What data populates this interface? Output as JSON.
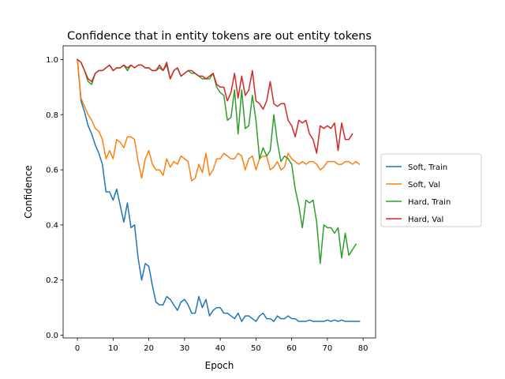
{
  "chart_data": {
    "type": "line",
    "title": "Confidence that in entity tokens are out entity tokens",
    "xlabel": "Epoch",
    "ylabel": "Confidence",
    "xlim": [
      -4,
      83.5
    ],
    "ylim": [
      -0.01,
      1.05
    ],
    "xticks": [
      0,
      10,
      20,
      30,
      40,
      50,
      60,
      70,
      80
    ],
    "yticks": [
      0.0,
      0.2,
      0.4,
      0.6,
      0.8,
      1.0
    ],
    "ytick_labels": [
      "0.0",
      "0.2",
      "0.4",
      "0.6",
      "0.8",
      "1.0"
    ],
    "grid": false,
    "legend_position": "outside-right",
    "series": [
      {
        "name": "Soft, Train",
        "color": "#1f77b4",
        "values": [
          1.0,
          0.85,
          0.81,
          0.76,
          0.73,
          0.69,
          0.66,
          0.62,
          0.52,
          0.52,
          0.49,
          0.53,
          0.47,
          0.41,
          0.48,
          0.39,
          0.4,
          0.28,
          0.2,
          0.26,
          0.25,
          0.18,
          0.12,
          0.11,
          0.11,
          0.14,
          0.13,
          0.11,
          0.09,
          0.12,
          0.13,
          0.11,
          0.08,
          0.08,
          0.14,
          0.1,
          0.13,
          0.07,
          0.09,
          0.1,
          0.1,
          0.08,
          0.08,
          0.07,
          0.06,
          0.08,
          0.05,
          0.07,
          0.07,
          0.06,
          0.05,
          0.07,
          0.08,
          0.06,
          0.06,
          0.05,
          0.07,
          0.06,
          0.06,
          0.07,
          0.06,
          0.06,
          0.05,
          0.05,
          0.05,
          0.055,
          0.05,
          0.05,
          0.05,
          0.05,
          0.055,
          0.05,
          0.055,
          0.05,
          0.055,
          0.05,
          0.05,
          0.05,
          0.05,
          0.05
        ]
      },
      {
        "name": "Soft, Val",
        "color": "#ff7f0e",
        "values": [
          1.0,
          0.86,
          0.83,
          0.8,
          0.78,
          0.75,
          0.74,
          0.71,
          0.64,
          0.67,
          0.64,
          0.71,
          0.7,
          0.68,
          0.72,
          0.72,
          0.71,
          0.63,
          0.57,
          0.64,
          0.67,
          0.62,
          0.6,
          0.6,
          0.58,
          0.64,
          0.61,
          0.63,
          0.62,
          0.65,
          0.64,
          0.63,
          0.56,
          0.57,
          0.62,
          0.59,
          0.66,
          0.58,
          0.6,
          0.64,
          0.64,
          0.66,
          0.65,
          0.64,
          0.64,
          0.66,
          0.65,
          0.6,
          0.64,
          0.65,
          0.6,
          0.64,
          0.65,
          0.65,
          0.6,
          0.61,
          0.63,
          0.6,
          0.61,
          0.66,
          0.64,
          0.63,
          0.62,
          0.63,
          0.62,
          0.63,
          0.63,
          0.62,
          0.6,
          0.61,
          0.63,
          0.63,
          0.63,
          0.62,
          0.62,
          0.63,
          0.63,
          0.62,
          0.63,
          0.62
        ]
      },
      {
        "name": "Hard, Train",
        "color": "#2ca02c",
        "values": [
          1.0,
          0.99,
          0.96,
          0.92,
          0.91,
          0.95,
          0.96,
          0.96,
          0.97,
          0.98,
          0.96,
          0.97,
          0.97,
          0.98,
          0.96,
          0.98,
          0.97,
          0.98,
          0.98,
          0.97,
          0.97,
          0.96,
          0.96,
          0.97,
          0.96,
          0.98,
          0.93,
          0.96,
          0.97,
          0.94,
          0.95,
          0.96,
          0.95,
          0.95,
          0.94,
          0.93,
          0.93,
          0.93,
          0.95,
          0.9,
          0.88,
          0.87,
          0.78,
          0.79,
          0.89,
          0.73,
          0.89,
          0.75,
          0.76,
          0.87,
          0.78,
          0.64,
          0.68,
          0.65,
          0.67,
          0.8,
          0.7,
          0.63,
          0.65,
          0.64,
          0.62,
          0.53,
          0.47,
          0.39,
          0.49,
          0.48,
          0.49,
          0.41,
          0.26,
          0.4,
          0.39,
          0.39,
          0.37,
          0.39,
          0.28,
          0.37,
          0.29,
          0.31,
          0.33
        ]
      },
      {
        "name": "Hard, Val",
        "color": "#d62728",
        "values": [
          1.0,
          0.99,
          0.96,
          0.93,
          0.92,
          0.95,
          0.96,
          0.96,
          0.97,
          0.98,
          0.96,
          0.97,
          0.97,
          0.98,
          0.97,
          0.98,
          0.97,
          0.98,
          0.98,
          0.97,
          0.97,
          0.96,
          0.96,
          0.98,
          0.96,
          0.99,
          0.93,
          0.96,
          0.97,
          0.94,
          0.95,
          0.96,
          0.96,
          0.95,
          0.94,
          0.94,
          0.93,
          0.94,
          0.95,
          0.91,
          0.9,
          0.9,
          0.85,
          0.88,
          0.95,
          0.86,
          0.94,
          0.87,
          0.89,
          0.96,
          0.85,
          0.84,
          0.82,
          0.85,
          0.92,
          0.84,
          0.83,
          0.84,
          0.84,
          0.78,
          0.76,
          0.72,
          0.78,
          0.77,
          0.78,
          0.73,
          0.71,
          0.66,
          0.76,
          0.75,
          0.76,
          0.75,
          0.77,
          0.67,
          0.77,
          0.71,
          0.71,
          0.73
        ]
      }
    ]
  }
}
